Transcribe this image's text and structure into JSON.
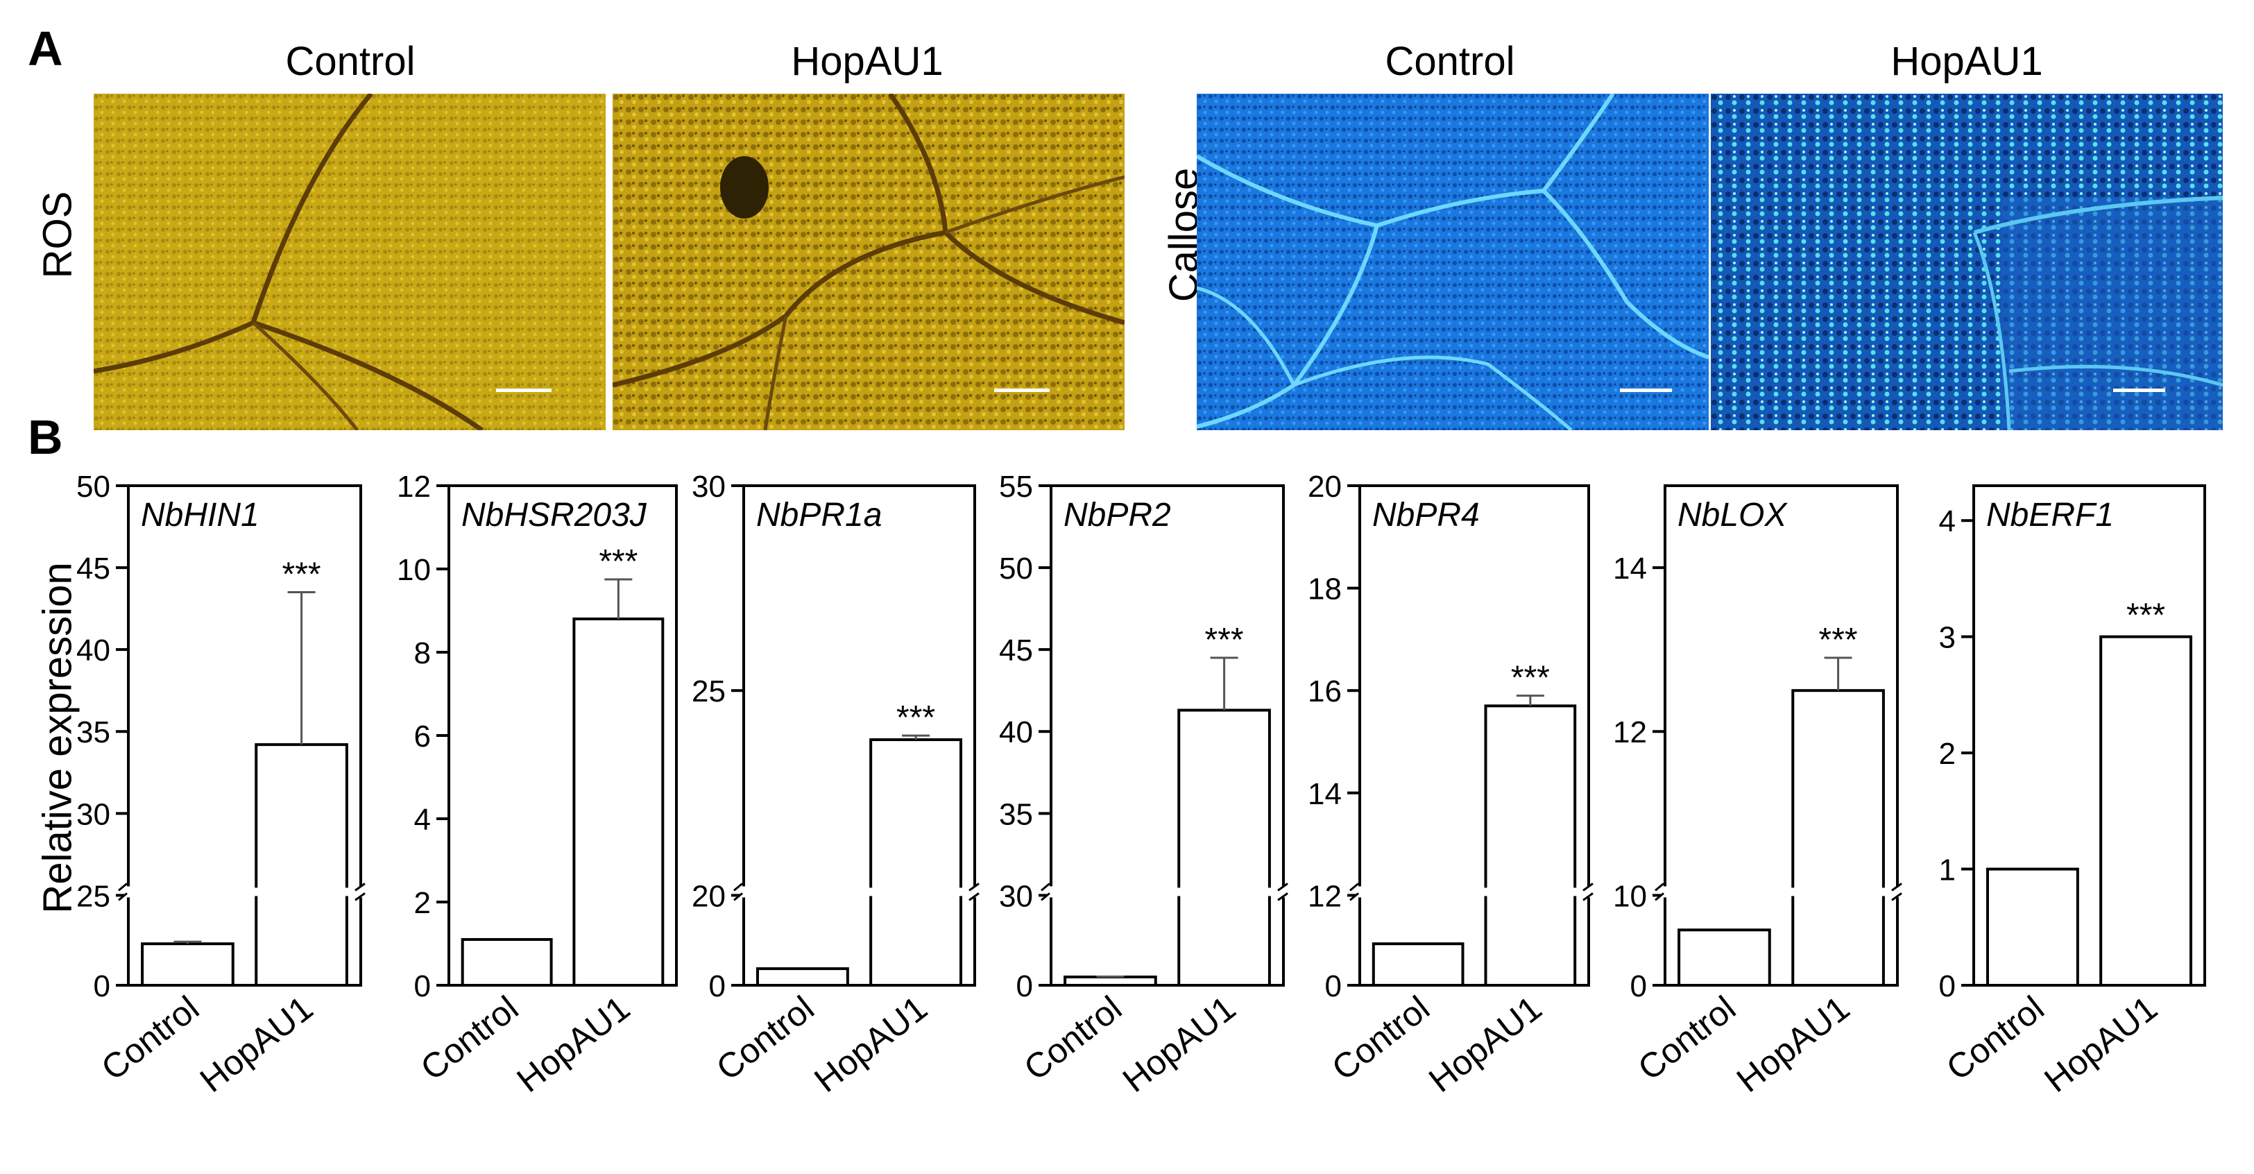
{
  "panelA": {
    "letter": "A",
    "ros_label": "ROS",
    "callose_label": "Callose",
    "images": [
      {
        "title": "Control",
        "stain": "ROS",
        "color": "#c4a213"
      },
      {
        "title": "HopAU1",
        "stain": "ROS",
        "color": "#c4a213"
      },
      {
        "title": "Control",
        "stain": "Callose",
        "color": "#1a6fd6"
      },
      {
        "title": "HopAU1",
        "stain": "Callose",
        "color": "#1a6fd6"
      }
    ]
  },
  "panelB": {
    "letter": "B",
    "ylabel": "Relative expression"
  },
  "chart_data": [
    {
      "type": "bar",
      "title": "NbHIN1",
      "categories": [
        "Control",
        "HopAU1"
      ],
      "values": [
        1.0,
        34.2
      ],
      "errors": [
        0.05,
        9.3
      ],
      "significance": [
        "",
        "***"
      ],
      "ylabel": "Relative expression",
      "axis_break": {
        "low": [
          0,
          2
        ],
        "high": [
          25,
          50
        ]
      },
      "yticks": [
        0,
        25,
        30,
        35,
        40,
        45,
        50
      ]
    },
    {
      "type": "bar",
      "title": "NbHSR203J",
      "categories": [
        "Control",
        "HopAU1"
      ],
      "values": [
        1.1,
        8.8
      ],
      "errors": [
        0.02,
        0.95
      ],
      "significance": [
        "",
        "***"
      ],
      "ylim": [
        0,
        12
      ],
      "yticks": [
        0,
        2,
        4,
        6,
        8,
        10,
        12
      ]
    },
    {
      "type": "bar",
      "title": "NbPR1a",
      "categories": [
        "Control",
        "HopAU1"
      ],
      "values": [
        1.0,
        23.8
      ],
      "errors": [
        0.03,
        0.1
      ],
      "significance": [
        "",
        "***"
      ],
      "axis_break": {
        "low": [
          0,
          5
        ],
        "high": [
          20,
          30
        ]
      },
      "yticks": [
        0,
        20,
        25,
        30
      ]
    },
    {
      "type": "bar",
      "title": "NbPR2",
      "categories": [
        "Control",
        "HopAU1"
      ],
      "values": [
        1.0,
        41.3
      ],
      "errors": [
        0.05,
        3.2
      ],
      "significance": [
        "",
        "***"
      ],
      "axis_break": {
        "low": [
          0,
          10
        ],
        "high": [
          30,
          55
        ]
      },
      "yticks": [
        0,
        30,
        35,
        40,
        45,
        50,
        55
      ]
    },
    {
      "type": "bar",
      "title": "NbPR4",
      "categories": [
        "Control",
        "HopAU1"
      ],
      "values": [
        1.0,
        15.7
      ],
      "errors": [
        0.03,
        0.2
      ],
      "significance": [
        "",
        "***"
      ],
      "axis_break": {
        "low": [
          0,
          2
        ],
        "high": [
          12,
          20
        ]
      },
      "yticks": [
        0,
        12,
        14,
        16,
        18,
        20
      ]
    },
    {
      "type": "bar",
      "title": "NbLOX",
      "categories": [
        "Control",
        "HopAU1"
      ],
      "values": [
        1.0,
        12.5
      ],
      "errors": [
        0.02,
        0.4
      ],
      "significance": [
        "",
        "***"
      ],
      "axis_break": {
        "low": [
          0,
          1.5
        ],
        "high": [
          10,
          15
        ]
      },
      "yticks": [
        0,
        10,
        12,
        14
      ]
    },
    {
      "type": "bar",
      "title": "NbERF1",
      "categories": [
        "Control",
        "HopAU1"
      ],
      "values": [
        1.0,
        3.0
      ],
      "errors": [
        0.01,
        0.03
      ],
      "significance": [
        "",
        "***"
      ],
      "ylim": [
        0,
        4.3
      ],
      "yticks": [
        0,
        1,
        2,
        3,
        4
      ]
    }
  ]
}
